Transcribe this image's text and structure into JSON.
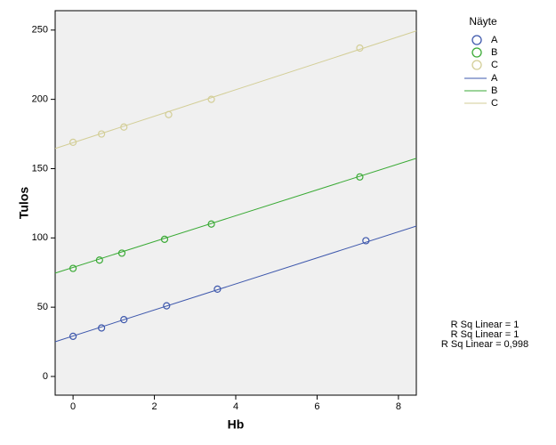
{
  "chart_data": {
    "type": "scatter",
    "xlabel": "Hb",
    "ylabel": "Tulos",
    "xlim": [
      -0.44,
      8.44
    ],
    "ylim": [
      -13.5,
      264
    ],
    "xticks": [
      0,
      2,
      4,
      6,
      8
    ],
    "yticks": [
      0,
      50,
      100,
      150,
      200,
      250
    ],
    "legend_title": "Näyte",
    "legend": "right",
    "series": [
      {
        "name": "A",
        "color": "#3e58ac",
        "x": [
          0,
          0.7,
          1.25,
          2.3,
          3.55,
          7.2
        ],
        "values": [
          29,
          35,
          41,
          51,
          63,
          98
        ],
        "fit": {
          "intercept": 29.2,
          "slope": 9.4
        }
      },
      {
        "name": "B",
        "color": "#3aaa35",
        "x": [
          0,
          0.65,
          1.2,
          2.25,
          3.4,
          7.05
        ],
        "values": [
          78,
          84,
          89,
          99,
          110,
          144
        ],
        "fit": {
          "intercept": 78.7,
          "slope": 9.33
        }
      },
      {
        "name": "C",
        "color": "#d3ce97",
        "x": [
          0,
          0.7,
          1.25,
          2.35,
          3.4,
          7.05
        ],
        "values": [
          169,
          175,
          180,
          189,
          200,
          237
        ],
        "fit": {
          "intercept": 168.7,
          "slope": 9.56
        }
      }
    ],
    "annotations": [
      "R Sq Linear = 1",
      "R Sq Linear = 1",
      "R Sq Linear = 0,998"
    ]
  }
}
